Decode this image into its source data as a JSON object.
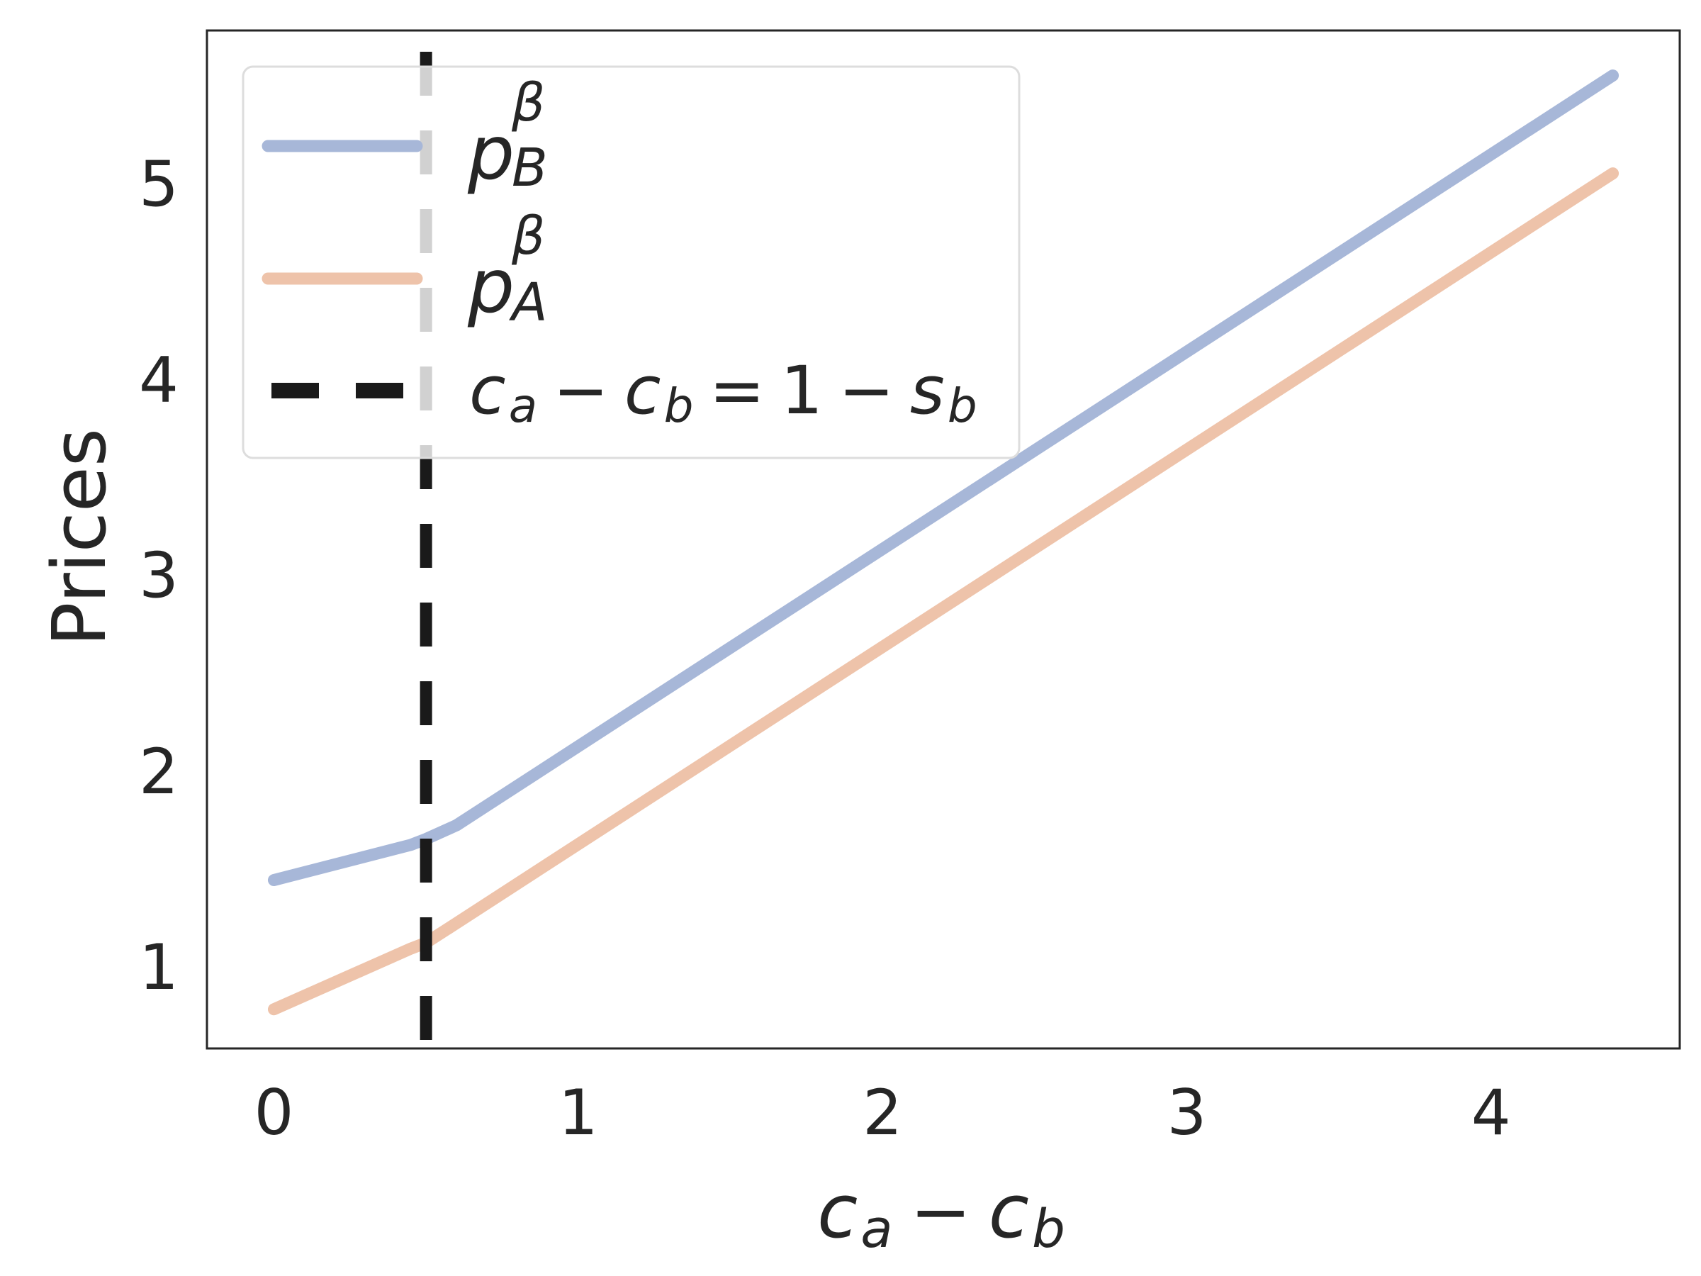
{
  "chart_data": {
    "type": "line",
    "xlabel": "c_a − c_b",
    "ylabel": "Prices",
    "xlim": [
      -0.22,
      4.62
    ],
    "ylim": [
      0.58,
      5.78
    ],
    "x_ticks": [
      0,
      1,
      2,
      3,
      4
    ],
    "y_ticks": [
      1,
      2,
      3,
      4,
      5
    ],
    "grid": false,
    "legend_position": "top-left",
    "series": [
      {
        "name": "p_B^β",
        "color": "#a7b7d8",
        "x": [
          0,
          0.45,
          0.5,
          0.6,
          4.4
        ],
        "y": [
          1.44,
          1.62,
          1.65,
          1.72,
          5.55
        ]
      },
      {
        "name": "p_A^β",
        "color": "#eec3aa",
        "x": [
          0,
          0.45,
          0.5,
          0.6,
          4.4
        ],
        "y": [
          0.78,
          1.09,
          1.12,
          1.22,
          5.05
        ]
      }
    ],
    "vline": {
      "name": "c_a − c_b = 1 − s_b",
      "x": 0.5,
      "color": "#1a1a1a"
    },
    "legend_labels": {
      "series_b": {
        "base": "p",
        "sub": "B",
        "sup": "β"
      },
      "series_a": {
        "base": "p",
        "sub": "A",
        "sup": "β"
      },
      "vline": {
        "c1": "c",
        "s1": "a",
        "minus1": "−",
        "c2": "c",
        "s2": "b",
        "eq": "=",
        "one": "1",
        "minus2": "−",
        "s": "s",
        "s3": "b"
      }
    },
    "xlabel_parts": {
      "c1": "c",
      "s1": "a",
      "minus": "−",
      "c2": "c",
      "s2": "b"
    }
  }
}
